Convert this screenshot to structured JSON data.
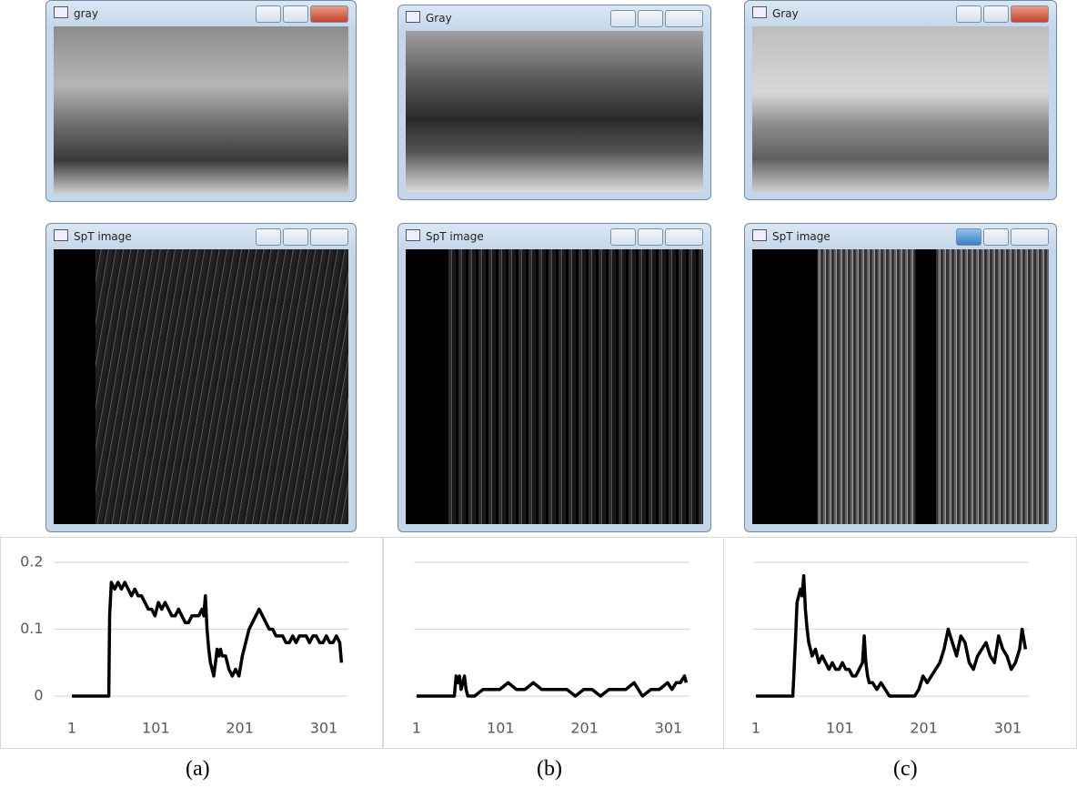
{
  "windows": [
    {
      "title": "gray"
    },
    {
      "title": "Gray"
    },
    {
      "title": "Gray"
    },
    {
      "title": "SpT image"
    },
    {
      "title": "SpT image"
    },
    {
      "title": "SpT image"
    }
  ],
  "chart_data": [
    {
      "type": "line",
      "color": "#000000",
      "grid": true,
      "ytick_labels": true,
      "xlim": [
        -20,
        330
      ],
      "xticks": [
        1,
        101,
        201,
        301
      ],
      "ylim": [
        0,
        0.2
      ],
      "yticks": [
        0,
        0.1,
        0.2
      ],
      "x": [
        1,
        45,
        46,
        48,
        52,
        56,
        60,
        64,
        68,
        72,
        76,
        80,
        84,
        88,
        92,
        96,
        100,
        104,
        108,
        112,
        116,
        120,
        124,
        128,
        132,
        136,
        140,
        144,
        148,
        152,
        156,
        158,
        160,
        162,
        164,
        166,
        168,
        170,
        172,
        174,
        176,
        178,
        180,
        184,
        188,
        192,
        196,
        200,
        204,
        208,
        212,
        216,
        220,
        224,
        228,
        232,
        236,
        240,
        244,
        248,
        252,
        256,
        260,
        264,
        268,
        272,
        276,
        280,
        284,
        288,
        292,
        296,
        300,
        304,
        308,
        312,
        316,
        320,
        322
      ],
      "values": [
        0,
        0,
        0.12,
        0.17,
        0.16,
        0.17,
        0.16,
        0.17,
        0.16,
        0.15,
        0.16,
        0.15,
        0.15,
        0.14,
        0.13,
        0.13,
        0.12,
        0.14,
        0.13,
        0.14,
        0.13,
        0.12,
        0.12,
        0.13,
        0.12,
        0.11,
        0.11,
        0.12,
        0.12,
        0.12,
        0.13,
        0.12,
        0.15,
        0.1,
        0.07,
        0.05,
        0.04,
        0.03,
        0.05,
        0.07,
        0.06,
        0.07,
        0.06,
        0.06,
        0.04,
        0.03,
        0.04,
        0.03,
        0.06,
        0.08,
        0.1,
        0.11,
        0.12,
        0.13,
        0.12,
        0.11,
        0.1,
        0.1,
        0.09,
        0.09,
        0.09,
        0.08,
        0.08,
        0.09,
        0.08,
        0.09,
        0.09,
        0.09,
        0.08,
        0.09,
        0.09,
        0.08,
        0.08,
        0.09,
        0.08,
        0.08,
        0.09,
        0.08,
        0.05
      ],
      "caption": "(a)"
    },
    {
      "type": "line",
      "color": "#000000",
      "grid": true,
      "ytick_labels": false,
      "xlim": [
        -2,
        326
      ],
      "xticks": [
        1,
        101,
        201,
        301
      ],
      "ylim": [
        0,
        0.2
      ],
      "yticks": [
        0,
        0.1,
        0.2
      ],
      "x": [
        1,
        46,
        48,
        50,
        52,
        54,
        56,
        58,
        60,
        62,
        64,
        66,
        70,
        80,
        90,
        100,
        110,
        120,
        130,
        140,
        150,
        160,
        170,
        180,
        190,
        200,
        210,
        220,
        230,
        240,
        250,
        260,
        270,
        280,
        290,
        300,
        305,
        310,
        315,
        320,
        322
      ],
      "values": [
        0,
        0,
        0.03,
        0.02,
        0.03,
        0.01,
        0.02,
        0.03,
        0.01,
        0,
        0,
        0,
        0,
        0.01,
        0.01,
        0.01,
        0.02,
        0.01,
        0.01,
        0.02,
        0.01,
        0.01,
        0.01,
        0.01,
        0,
        0.01,
        0.01,
        0,
        0.01,
        0.01,
        0.01,
        0.02,
        0,
        0.01,
        0.01,
        0.02,
        0.01,
        0.02,
        0.02,
        0.03,
        0.02
      ],
      "caption": "(b)"
    },
    {
      "type": "line",
      "color": "#000000",
      "grid": true,
      "ytick_labels": false,
      "xlim": [
        -2,
        326
      ],
      "xticks": [
        1,
        101,
        201,
        301
      ],
      "ylim": [
        0,
        0.2
      ],
      "yticks": [
        0,
        0.1,
        0.2
      ],
      "x": [
        1,
        45,
        48,
        50,
        52,
        54,
        56,
        58,
        60,
        62,
        64,
        66,
        68,
        72,
        76,
        80,
        84,
        88,
        92,
        96,
        100,
        104,
        108,
        112,
        116,
        120,
        124,
        128,
        130,
        132,
        134,
        136,
        140,
        145,
        150,
        155,
        160,
        170,
        180,
        190,
        195,
        200,
        205,
        210,
        215,
        220,
        225,
        230,
        235,
        240,
        245,
        250,
        255,
        260,
        265,
        270,
        275,
        280,
        285,
        290,
        295,
        300,
        305,
        310,
        315,
        318,
        322
      ],
      "values": [
        0,
        0,
        0.08,
        0.14,
        0.15,
        0.16,
        0.15,
        0.18,
        0.13,
        0.1,
        0.08,
        0.07,
        0.06,
        0.07,
        0.05,
        0.06,
        0.05,
        0.04,
        0.05,
        0.04,
        0.04,
        0.05,
        0.04,
        0.04,
        0.03,
        0.03,
        0.04,
        0.05,
        0.09,
        0.05,
        0.03,
        0.02,
        0.02,
        0.01,
        0.02,
        0.01,
        0,
        0,
        0,
        0,
        0.01,
        0.03,
        0.02,
        0.03,
        0.04,
        0.05,
        0.07,
        0.1,
        0.08,
        0.06,
        0.09,
        0.08,
        0.05,
        0.04,
        0.06,
        0.07,
        0.08,
        0.06,
        0.05,
        0.09,
        0.07,
        0.06,
        0.04,
        0.05,
        0.07,
        0.1,
        0.07
      ],
      "caption": "(c)"
    }
  ]
}
